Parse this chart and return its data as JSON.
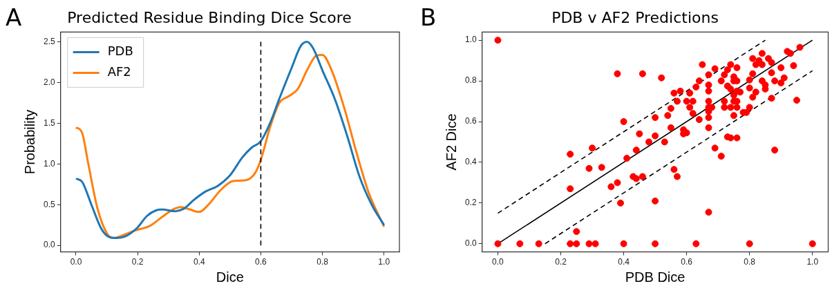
{
  "chart_data": [
    {
      "type": "line",
      "title": "Predicted Residue Binding Dice Score",
      "xlabel": "Dice",
      "ylabel": "Probability",
      "annotations": [
        "A"
      ],
      "xlim": [
        -0.05,
        1.05
      ],
      "ylim": [
        -0.08,
        2.62
      ],
      "xticks": [
        {
          "value": 0,
          "label": "0.0"
        },
        {
          "value": 0.2,
          "label": "0.2"
        },
        {
          "value": 0.4,
          "label": "0.4"
        },
        {
          "value": 0.6,
          "label": "0.6"
        },
        {
          "value": 0.8,
          "label": "0.8"
        },
        {
          "value": 1,
          "label": "1.0"
        }
      ],
      "yticks": [
        {
          "value": 0,
          "label": "0.0"
        },
        {
          "value": 0.5,
          "label": "0.5"
        },
        {
          "value": 1,
          "label": "1.0"
        },
        {
          "value": 1.5,
          "label": "1.5"
        },
        {
          "value": 2,
          "label": "2.0"
        },
        {
          "value": 2.5,
          "label": "2.5"
        }
      ],
      "grid": false,
      "legend": "top left",
      "line_style": "solid",
      "ref_lines": [
        {
          "axis": "x",
          "value": 0.6,
          "color": "#000000",
          "line_style": "dashed"
        }
      ],
      "series": [
        {
          "name": "PDB",
          "color": "#1f77b4",
          "x": [
            0,
            0.02,
            0.05,
            0.08,
            0.1,
            0.13,
            0.16,
            0.2,
            0.23,
            0.26,
            0.28,
            0.32,
            0.35,
            0.38,
            0.42,
            0.46,
            0.5,
            0.54,
            0.57,
            0.6,
            0.63,
            0.66,
            0.7,
            0.73,
            0.75,
            0.77,
            0.8,
            0.84,
            0.88,
            0.92,
            0.96,
            1.0
          ],
          "values": [
            0.82,
            0.78,
            0.5,
            0.22,
            0.12,
            0.09,
            0.11,
            0.22,
            0.36,
            0.43,
            0.44,
            0.42,
            0.45,
            0.55,
            0.66,
            0.73,
            0.86,
            1.08,
            1.2,
            1.28,
            1.5,
            1.8,
            2.18,
            2.45,
            2.5,
            2.42,
            2.15,
            1.8,
            1.35,
            0.85,
            0.5,
            0.25
          ]
        },
        {
          "name": "AF2",
          "color": "#ff7f0e",
          "x": [
            0,
            0.02,
            0.04,
            0.07,
            0.1,
            0.12,
            0.15,
            0.19,
            0.24,
            0.28,
            0.32,
            0.34,
            0.37,
            0.4,
            0.43,
            0.47,
            0.51,
            0.55,
            0.58,
            0.6,
            0.63,
            0.66,
            0.69,
            0.72,
            0.75,
            0.78,
            0.8,
            0.83,
            0.87,
            0.91,
            0.95,
            1.0
          ],
          "values": [
            1.45,
            1.38,
            1.0,
            0.45,
            0.15,
            0.09,
            0.12,
            0.18,
            0.24,
            0.35,
            0.45,
            0.47,
            0.44,
            0.41,
            0.5,
            0.68,
            0.79,
            0.8,
            0.88,
            1.05,
            1.45,
            1.75,
            1.83,
            1.92,
            2.15,
            2.33,
            2.34,
            2.15,
            1.7,
            1.15,
            0.65,
            0.23
          ]
        }
      ]
    },
    {
      "type": "scatter",
      "title": "PDB v AF2 Predictions",
      "xlabel": "PDB Dice",
      "ylabel": "AF2 Dice",
      "annotations": [
        "B"
      ],
      "xlim": [
        -0.05,
        1.05
      ],
      "ylim": [
        -0.04,
        1.04
      ],
      "xticks": [
        {
          "value": 0,
          "label": "0.0"
        },
        {
          "value": 0.2,
          "label": "0.2"
        },
        {
          "value": 0.4,
          "label": "0.4"
        },
        {
          "value": 0.6,
          "label": "0.6"
        },
        {
          "value": 0.8,
          "label": "0.8"
        },
        {
          "value": 1,
          "label": "1.0"
        }
      ],
      "yticks": [
        {
          "value": 0,
          "label": "0.0"
        },
        {
          "value": 0.2,
          "label": "0.2"
        },
        {
          "value": 0.4,
          "label": "0.4"
        },
        {
          "value": 0.6,
          "label": "0.6"
        },
        {
          "value": 0.8,
          "label": "0.8"
        },
        {
          "value": 1,
          "label": "1.0"
        }
      ],
      "grid": false,
      "series": [
        {
          "type": "scatter",
          "marker": "circle",
          "color": "#ff0000",
          "x": [
            0,
            0,
            0.07,
            0.13,
            0.23,
            0.25,
            0.29,
            0.31,
            0.4,
            0.5,
            0.63,
            0.8,
            1.0,
            0.25,
            0.23,
            0.23,
            0.3,
            0.29,
            0.33,
            0.36,
            0.38,
            0.39,
            0.4,
            0.41,
            0.38,
            0.46,
            0.52,
            0.43,
            0.44,
            0.46,
            0.44,
            0.45,
            0.48,
            0.5,
            0.5,
            0.5,
            0.53,
            0.55,
            0.54,
            0.55,
            0.56,
            0.56,
            0.57,
            0.57,
            0.58,
            0.59,
            0.59,
            0.6,
            0.6,
            0.61,
            0.61,
            0.62,
            0.62,
            0.64,
            0.63,
            0.64,
            0.65,
            0.67,
            0.67,
            0.67,
            0.67,
            0.67,
            0.68,
            0.67,
            0.67,
            0.67,
            0.67,
            0.69,
            0.71,
            0.69,
            0.71,
            0.72,
            0.73,
            0.74,
            0.72,
            0.72,
            0.74,
            0.73,
            0.74,
            0.76,
            0.73,
            0.74,
            0.75,
            0.75,
            0.76,
            0.76,
            0.75,
            0.76,
            0.77,
            0.75,
            0.76,
            0.76,
            0.75,
            0.78,
            0.79,
            0.8,
            0.8,
            0.81,
            0.81,
            0.8,
            0.81,
            0.82,
            0.82,
            0.83,
            0.84,
            0.84,
            0.84,
            0.85,
            0.85,
            0.86,
            0.87,
            0.87,
            0.87,
            0.88,
            0.88,
            0.9,
            0.9,
            0.91,
            0.92,
            0.93,
            0.94,
            0.95,
            0.96
          ],
          "values": [
            1.0,
            0,
            0,
            0,
            0,
            0,
            0,
            0,
            0,
            0,
            0,
            0,
            0,
            0.06,
            0.27,
            0.44,
            0.47,
            0.37,
            0.375,
            0.28,
            0.3,
            0.2,
            0.6,
            0.42,
            0.835,
            0.835,
            0.815,
            0.33,
            0.32,
            0.33,
            0.46,
            0.54,
            0.5,
            0.53,
            0.62,
            0.21,
            0.5,
            0.57,
            0.63,
            0.665,
            0.74,
            0.365,
            0.33,
            0.7,
            0.75,
            0.56,
            0.54,
            0.545,
            0.7,
            0.74,
            0.67,
            0.7,
            0.64,
            0.61,
            0.77,
            0.8,
            0.88,
            0.83,
            0.78,
            0.75,
            0.7,
            0.67,
            0.67,
            0.65,
            0.62,
            0.57,
            0.155,
            0.47,
            0.43,
            0.86,
            0.8,
            0.83,
            0.855,
            0.88,
            0.7,
            0.67,
            0.67,
            0.525,
            0.52,
            0.52,
            0.775,
            0.76,
            0.82,
            0.8,
            0.865,
            0.8,
            0.73,
            0.75,
            0.745,
            0.7,
            0.7,
            0.67,
            0.63,
            0.645,
            0.645,
            0.67,
            0.805,
            0.835,
            0.91,
            0.765,
            0.72,
            0.745,
            0.88,
            0.9,
            0.935,
            0.88,
            0.8,
            0.78,
            0.76,
            0.91,
            0.89,
            0.84,
            0.715,
            0.8,
            0.46,
            0.865,
            0.79,
            0.815,
            0.945,
            0.935,
            0.875,
            0.705,
            0.965
          ]
        },
        {
          "type": "line",
          "color": "#000000",
          "line_style": "solid",
          "x": [
            0,
            1
          ],
          "values": [
            0,
            1
          ]
        },
        {
          "type": "line",
          "color": "#000000",
          "line_style": "dashed",
          "x": [
            0,
            0.85
          ],
          "values": [
            0.15,
            1.0
          ]
        },
        {
          "type": "line",
          "color": "#000000",
          "line_style": "dashed",
          "x": [
            0.15,
            1.0
          ],
          "values": [
            0,
            0.85
          ]
        }
      ]
    }
  ]
}
